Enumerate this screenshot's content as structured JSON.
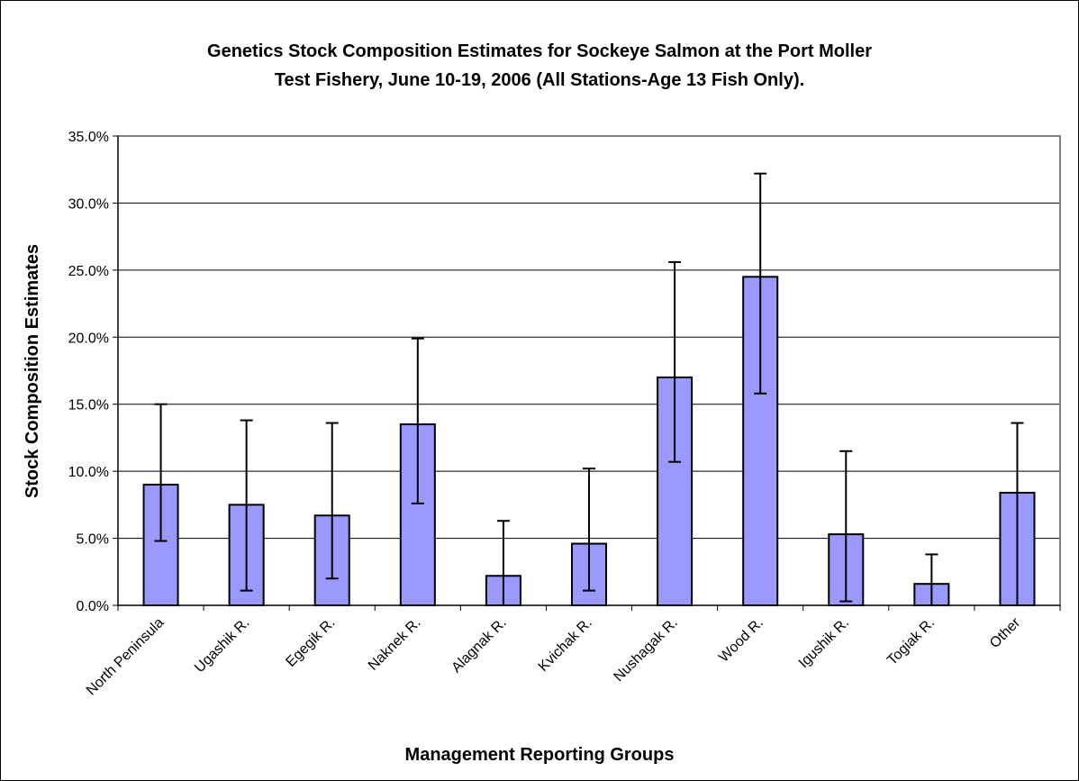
{
  "chart_data": {
    "type": "bar",
    "title_line1": "Genetics Stock Composition Estimates for Sockeye Salmon at the Port Moller",
    "title_line2": "Test Fishery, June 10-19, 2006 (All Stations-Age 13 Fish Only).",
    "xlabel": "Management Reporting Groups",
    "ylabel": "Stock Composition Estimates",
    "categories": [
      "North Peninsula",
      "Ugashik R.",
      "Egegik R.",
      "Naknek R.",
      "Alagnak R.",
      "Kvichak R.",
      "Nushagak R.",
      "Wood R.",
      "Igushik R.",
      "Togiak R.",
      "Other"
    ],
    "values": [
      9.0,
      7.5,
      6.7,
      13.5,
      2.2,
      4.6,
      17.0,
      24.5,
      5.3,
      1.6,
      8.4
    ],
    "error_low": [
      4.8,
      1.1,
      2.0,
      7.6,
      0.0,
      1.1,
      10.7,
      15.8,
      0.3,
      0.0,
      0.0
    ],
    "error_high": [
      15.0,
      13.8,
      13.6,
      19.9,
      6.3,
      10.2,
      25.6,
      32.2,
      11.5,
      3.8,
      13.6
    ],
    "ylim": [
      0,
      35
    ],
    "yticks": [
      "0.0%",
      "5.0%",
      "10.0%",
      "15.0%",
      "20.0%",
      "25.0%",
      "30.0%",
      "35.0%"
    ],
    "grid": true,
    "bar_color": "#9999ff",
    "legend": "none"
  }
}
